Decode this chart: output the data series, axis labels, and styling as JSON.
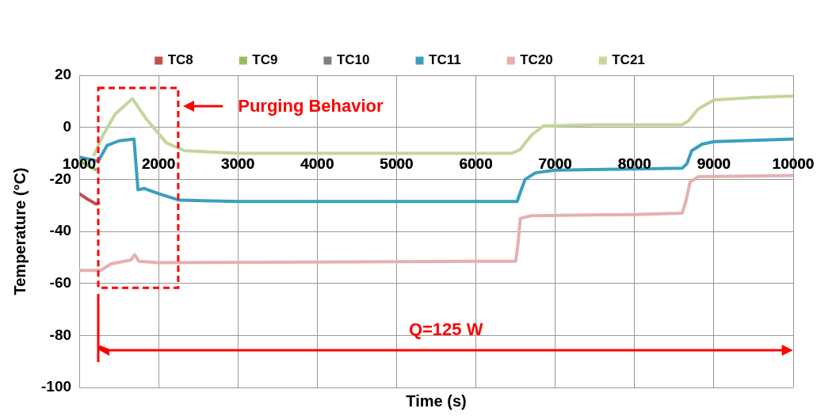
{
  "chart_data": {
    "type": "line",
    "xlabel": "Time (s)",
    "ylabel": "Temperature (°C)",
    "xlim": [
      1000,
      10000
    ],
    "xticks": [
      1000,
      2000,
      3000,
      4000,
      5000,
      6000,
      7000,
      8000,
      9000,
      10000
    ],
    "ylim": [
      -100,
      20
    ],
    "yticks": [
      -100,
      -80,
      -60,
      -40,
      -20,
      0,
      20
    ],
    "grid": true,
    "legend": "top",
    "series": [
      {
        "name": "TC8",
        "color": "#c0504d",
        "x": [
          1000,
          1100,
          1210,
          1260
        ],
        "values": [
          -25.5,
          -27.5,
          -29.5,
          -29
        ]
      },
      {
        "name": "TC9",
        "color": "#9bbb59",
        "x": [
          1000,
          1100,
          1220
        ],
        "values": [
          -13,
          -14.5,
          -16.5
        ]
      },
      {
        "name": "TC10",
        "color": "#7f7f7f"
      },
      {
        "name": "TC11",
        "color": "#3a9fc0",
        "x": [
          1000,
          1240,
          1350,
          1500,
          1690,
          1740,
          1820,
          2000,
          2260,
          3000,
          6000,
          6520,
          6560,
          6620,
          6750,
          7000,
          8000,
          8600,
          8660,
          8720,
          8850,
          9000,
          10000
        ],
        "values": [
          -11.4,
          -13,
          -7,
          -5.2,
          -4.5,
          -24,
          -23.5,
          -25.5,
          -28,
          -28.5,
          -28.5,
          -28.5,
          -25,
          -20,
          -17.5,
          -16.5,
          -16,
          -15.7,
          -14,
          -9,
          -6.5,
          -5.5,
          -4.5
        ]
      },
      {
        "name": "TC20",
        "color": "#e6b0b0",
        "x": [
          1000,
          1270,
          1400,
          1650,
          1700,
          1750,
          2000,
          6000,
          6500,
          6530,
          6560,
          6700,
          8000,
          8600,
          8650,
          8700,
          8800,
          10000
        ],
        "values": [
          -55,
          -55,
          -52.5,
          -51,
          -49,
          -51.5,
          -52,
          -51.5,
          -51.5,
          -45,
          -35,
          -34,
          -33.5,
          -33,
          -28,
          -21,
          -19,
          -18.5
        ]
      },
      {
        "name": "TC21",
        "color": "#c3d69b",
        "x": [
          1180,
          1300,
          1450,
          1670,
          1850,
          2100,
          2330,
          3000,
          6000,
          6450,
          6560,
          6700,
          6850,
          7500,
          8600,
          8680,
          8800,
          9000,
          9500,
          10000
        ],
        "values": [
          -11,
          -3,
          5,
          11,
          3,
          -6,
          -9,
          -10,
          -10,
          -10,
          -8.5,
          -3,
          0.5,
          1,
          1,
          2.5,
          7,
          10.5,
          11.5,
          12
        ]
      }
    ],
    "annotations": [
      "Purging Behavior",
      "Q=125 W"
    ]
  }
}
